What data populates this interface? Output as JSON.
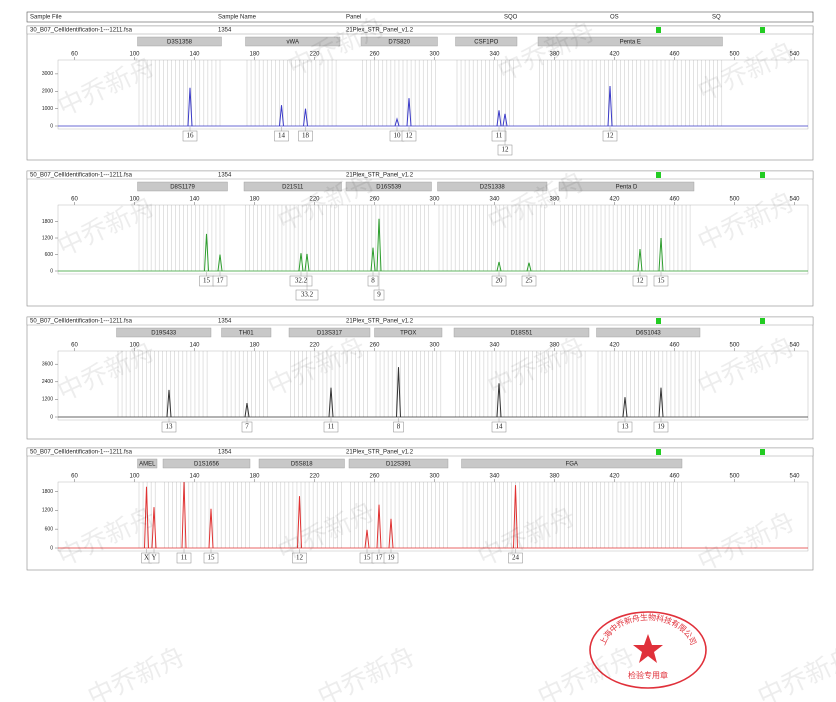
{
  "header": {
    "sample_file": "Sample File",
    "sample_name": "Sample Name",
    "panel": "Panel",
    "sqo": "SQO",
    "os": "OS",
    "sq": "SQ"
  },
  "watermark": "中乔新舟",
  "stamp": {
    "company": "上海中乔新舟生物科技有限公司",
    "label": "检验专用章"
  },
  "chart_data": [
    {
      "type": "peaks",
      "file": "30_B07_CellIdentification-1---1211.fsa",
      "sample_name": "1354",
      "panel": "21Plex_STR_Panel_v1.2",
      "color": "#3a3ac8",
      "xlim": [
        49,
        549
      ],
      "xticks": [
        60,
        100,
        140,
        180,
        220,
        260,
        300,
        340,
        380,
        420,
        460,
        500,
        540
      ],
      "ylim": [
        0,
        3800
      ],
      "yticks": [
        0,
        1000,
        2000,
        3000
      ],
      "loci": [
        {
          "name": "D3S1358",
          "start": 102,
          "end": 158
        },
        {
          "name": "vWA",
          "start": 174,
          "end": 237
        },
        {
          "name": "D7S820",
          "start": 251,
          "end": 302
        },
        {
          "name": "CSF1PO",
          "start": 314,
          "end": 355
        },
        {
          "name": "Penta E",
          "start": 369,
          "end": 492
        }
      ],
      "alleles": [
        "16",
        "14",
        "18",
        "10",
        "12",
        "11",
        "12",
        "12"
      ],
      "x": [
        137,
        198,
        214,
        275,
        283,
        343,
        347,
        417
      ],
      "values": [
        2200,
        1200,
        1000,
        400,
        1600,
        900,
        700,
        2300
      ]
    },
    {
      "type": "peaks",
      "file": "50_B07_CellIdentification-1---1211.fsa",
      "sample_name": "1354",
      "panel": "21Plex_STR_Panel_v1.2",
      "color": "#2e9e2e",
      "xlim": [
        49,
        549
      ],
      "xticks": [
        60,
        100,
        140,
        180,
        220,
        260,
        300,
        340,
        380,
        420,
        460,
        500,
        540
      ],
      "ylim": [
        0,
        2400
      ],
      "yticks": [
        0,
        600,
        1200,
        1800
      ],
      "loci": [
        {
          "name": "D8S1179",
          "start": 102,
          "end": 162
        },
        {
          "name": "D21S11",
          "start": 173,
          "end": 238
        },
        {
          "name": "D16S539",
          "start": 241,
          "end": 298
        },
        {
          "name": "D2S1338",
          "start": 302,
          "end": 375
        },
        {
          "name": "Penta D",
          "start": 383,
          "end": 473
        }
      ],
      "alleles": [
        "15",
        "17",
        "32.2",
        "33.2",
        "8",
        "9",
        "20",
        "25",
        "12",
        "15"
      ],
      "x": [
        148,
        157,
        211,
        215,
        259,
        263,
        343,
        363,
        437,
        451
      ],
      "values": [
        1350,
        600,
        650,
        620,
        850,
        1900,
        330,
        300,
        800,
        1200
      ]
    },
    {
      "type": "peaks",
      "file": "50_B07_CellIdentification-1---1211.fsa",
      "sample_name": "1354",
      "panel": "21Plex_STR_Panel_v1.2",
      "color": "#333333",
      "xlim": [
        49,
        549
      ],
      "xticks": [
        60,
        100,
        140,
        180,
        220,
        260,
        300,
        340,
        380,
        420,
        460,
        500,
        540
      ],
      "ylim": [
        0,
        4500
      ],
      "yticks": [
        0,
        1200,
        2400,
        3600
      ],
      "loci": [
        {
          "name": "D19S433",
          "start": 88,
          "end": 151
        },
        {
          "name": "TH01",
          "start": 158,
          "end": 191
        },
        {
          "name": "D13S317",
          "start": 203,
          "end": 257
        },
        {
          "name": "TPOX",
          "start": 260,
          "end": 305
        },
        {
          "name": "D18S51",
          "start": 313,
          "end": 403
        },
        {
          "name": "D6S1043",
          "start": 408,
          "end": 477
        }
      ],
      "alleles": [
        "13",
        "7",
        "11",
        "8",
        "14",
        "13",
        "19"
      ],
      "x": [
        123,
        175,
        231,
        276,
        343,
        427,
        451
      ],
      "values": [
        1850,
        950,
        2000,
        3400,
        2300,
        1350,
        2000
      ]
    },
    {
      "type": "peaks",
      "file": "50_B07_CellIdentification-1---1211.fsa",
      "sample_name": "1354",
      "panel": "21Plex_STR_Panel_v1.2",
      "color": "#e03232",
      "xlim": [
        49,
        549
      ],
      "xticks": [
        60,
        100,
        140,
        180,
        220,
        260,
        300,
        340,
        380,
        420,
        460,
        500,
        540
      ],
      "ylim": [
        0,
        2100
      ],
      "yticks": [
        0,
        600,
        1200,
        1800
      ],
      "loci": [
        {
          "name": "AMEL",
          "start": 102,
          "end": 115
        },
        {
          "name": "D1S1656",
          "start": 119,
          "end": 177
        },
        {
          "name": "D5S818",
          "start": 183,
          "end": 240
        },
        {
          "name": "D12S391",
          "start": 243,
          "end": 309
        },
        {
          "name": "FGA",
          "start": 318,
          "end": 465
        }
      ],
      "alleles": [
        "X",
        "Y",
        "11",
        "15",
        "12",
        "15",
        "17",
        "19",
        "24"
      ],
      "x": [
        108,
        113,
        133,
        151,
        210,
        255,
        263,
        271,
        354
      ],
      "values": [
        1950,
        1300,
        2100,
        1250,
        1650,
        580,
        1380,
        930,
        2000
      ]
    }
  ]
}
